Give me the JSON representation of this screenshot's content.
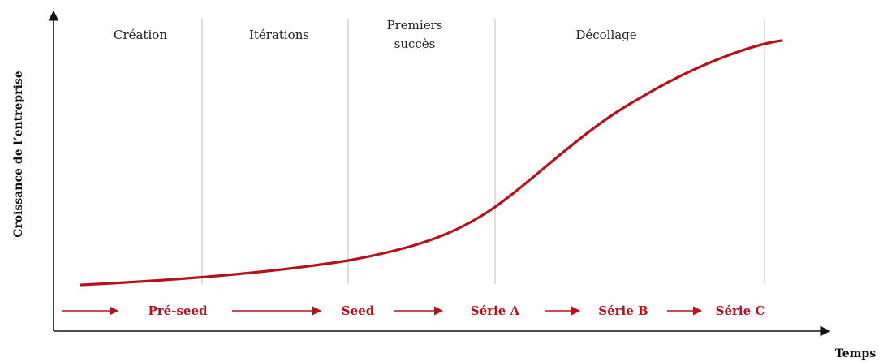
{
  "axes": {
    "y_label": "Croissance de l’entreprise",
    "x_label": "Temps"
  },
  "phases": [
    {
      "lines": [
        "Création"
      ]
    },
    {
      "lines": [
        "Itérations"
      ]
    },
    {
      "lines": [
        "Premiers",
        "succès"
      ]
    },
    {
      "lines": [
        "Décollage"
      ]
    }
  ],
  "funding_stages": [
    "Pré-seed",
    "Seed",
    "Série A",
    "Série B",
    "Série C"
  ],
  "colors": {
    "curve": "#b5121b",
    "arrows": "#b5121b",
    "stage_text": "#b5121b",
    "dividers": "#bdbdbd",
    "axes": "#111111"
  }
}
